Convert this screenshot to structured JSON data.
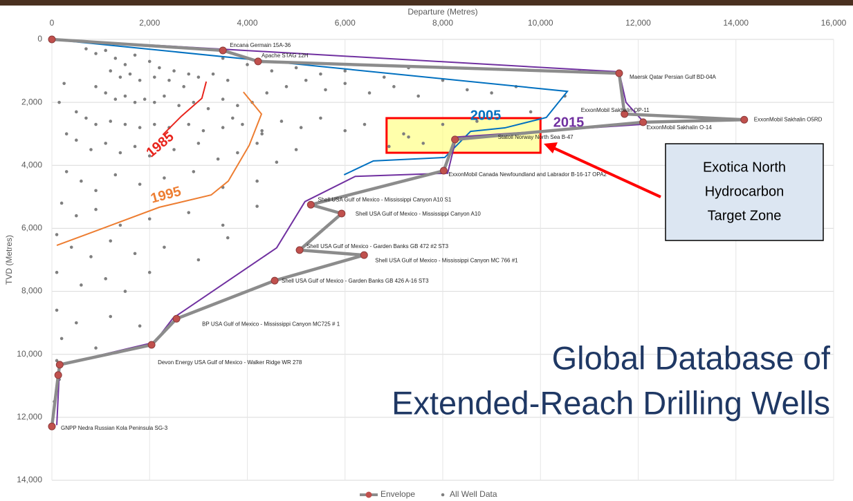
{
  "chart_data": {
    "type": "scatter",
    "title": [
      "Global Database of",
      "Extended-Reach Drilling Wells"
    ],
    "x_label": "Departure (Metres)",
    "y_label": "TVD (Metres)",
    "xlim": [
      0,
      16000
    ],
    "ylim": [
      0,
      14000
    ],
    "y_inverted": true,
    "x_axis_position": "top",
    "xticks": [
      0,
      {
        "value": 2000,
        "label": "2,000"
      },
      {
        "value": 4000,
        "label": "4,000"
      },
      {
        "value": 6000,
        "label": "6,000"
      },
      {
        "value": 8000,
        "label": "8,000"
      },
      {
        "value": 10000,
        "label": "10,000"
      },
      {
        "value": 12000,
        "label": "12,000"
      },
      {
        "value": 14000,
        "label": "14,000"
      },
      {
        "value": 16000,
        "label": "16,000"
      }
    ],
    "yticks": [
      0,
      {
        "value": 2000,
        "label": "2,000"
      },
      {
        "value": 4000,
        "label": "4,000"
      },
      {
        "value": 6000,
        "label": "6,000"
      },
      {
        "value": 8000,
        "label": "8,000"
      },
      {
        "value": 10000,
        "label": "10,000"
      },
      {
        "value": 12000,
        "label": "12,000"
      },
      {
        "value": 14000,
        "label": "14,000"
      }
    ],
    "grid": true,
    "legend": "bottom",
    "series": [
      {
        "name": "Envelope",
        "kind": "line",
        "color": "#8c8c8c",
        "marker_color": "#c0504d",
        "x": [
          0,
          3500,
          4220,
          11610,
          11720,
          14170,
          12100,
          8250,
          8020,
          5300,
          5930,
          5070,
          6390,
          4560,
          2550,
          2040,
          160,
          130,
          0
        ],
        "values": [
          0,
          350,
          700,
          1075,
          2370,
          2550,
          2630,
          3180,
          4170,
          5250,
          5530,
          6690,
          6850,
          7660,
          8870,
          9700,
          10330,
          10660,
          12290
        ],
        "point_labels": [
          null,
          "Encana Germain 15A-36",
          "Apache STAG 12H",
          "Maersk Qatar Persian Gulf BD-04A",
          "ExxonMobil Sakhalin OP-11",
          "ExxonMobil Sakhalin  O5RD",
          "ExxonMobil Sakhalin  O-14",
          "Statoil Norway North Sea B-47",
          "ExxonMobil Canada Newfoundland and Labrador B-16-17 OPA2",
          "Shell USA Gulf of Mexico - Mississippi Canyon A10 S1",
          "Shell USA Gulf of Mexico - Mississippi Canyon A10",
          "Shell USA Gulf of Mexico - Garden Banks GB 472 #2 ST3",
          "Shell USA Gulf of Mexico - Mississippi Canyon MC 766 #1",
          "Shell USA Gulf of Mexico - Garden Banks GB 426 A-16 ST3",
          "BP USA Gulf of Mexico - Mississippi Canyon MC725 # 1",
          "Devon Energy USA Gulf of Mexico - Walker Ridge WR 278",
          null,
          null,
          "GNPP Nedra Russian Kola Peninsula SG-3"
        ]
      },
      {
        "name": "All Well Data",
        "kind": "scatter",
        "color": "#7f7f7f",
        "x": [
          700,
          900,
          1100,
          1300,
          1500,
          1700,
          2000,
          2200,
          2500,
          2800,
          3000,
          3300,
          3600,
          1200,
          1400,
          1600,
          1800,
          2100,
          2400,
          2700,
          900,
          1100,
          1300,
          1500,
          1700,
          1900,
          2100,
          2300,
          2600,
          2900,
          3200,
          3500,
          3800,
          4100,
          4400,
          4800,
          5200,
          5600,
          6000,
          6500,
          7000,
          7500,
          8000,
          8500,
          9000,
          9500,
          500,
          700,
          900,
          1200,
          1500,
          1800,
          2100,
          2400,
          2800,
          3100,
          3500,
          3900,
          4300,
          4700,
          5100,
          5500,
          6000,
          6400,
          7200,
          7600,
          8000,
          500,
          800,
          1100,
          1400,
          1700,
          2000,
          2500,
          3000,
          3400,
          3800,
          4200,
          4600,
          5000,
          300,
          600,
          900,
          1300,
          1800,
          2300,
          2900,
          3500,
          4200,
          200,
          500,
          900,
          1400,
          2000,
          2800,
          3500,
          4200,
          100,
          400,
          800,
          1200,
          1700,
          2300,
          3000,
          3600,
          100,
          600,
          1100,
          1500,
          2000,
          100,
          500,
          1200,
          1800,
          200,
          900,
          100,
          150,
          50,
          3500,
          4000,
          4500,
          5000,
          5500,
          6000,
          6800,
          7300,
          10800,
          10500,
          9800,
          8700,
          7300,
          8200,
          6900,
          300,
          150,
          250,
          4300,
          3700
        ],
        "values": [
          300,
          450,
          350,
          600,
          800,
          500,
          700,
          900,
          1000,
          1100,
          1200,
          1100,
          1300,
          1000,
          1200,
          1100,
          1300,
          1200,
          1300,
          1500,
          1500,
          1700,
          1900,
          1800,
          2000,
          1900,
          2000,
          1800,
          2100,
          2000,
          2200,
          1900,
          2100,
          2000,
          1700,
          1500,
          1300,
          1600,
          1400,
          1700,
          1500,
          1800,
          1300,
          1600,
          1700,
          1500,
          2300,
          2500,
          2700,
          2600,
          2700,
          2800,
          2700,
          2800,
          2700,
          2900,
          2800,
          2700,
          2900,
          2600,
          2800,
          2500,
          2900,
          2700,
          3000,
          3300,
          2700,
          3200,
          3500,
          3300,
          3600,
          3400,
          3700,
          3500,
          3300,
          3800,
          3600,
          3300,
          3900,
          3500,
          4200,
          4500,
          4800,
          4300,
          4600,
          4400,
          4200,
          4700,
          4500,
          5200,
          5600,
          5400,
          5900,
          5700,
          5500,
          5900,
          5300,
          6200,
          6600,
          6900,
          6400,
          6800,
          6600,
          7000,
          6300,
          7400,
          7800,
          7600,
          8000,
          7400,
          8600,
          9000,
          8800,
          9100,
          9500,
          9800,
          10200,
          10800,
          11500,
          600,
          800,
          1000,
          900,
          1100,
          1000,
          1200,
          900,
          1000,
          1800,
          2300,
          2600,
          3100,
          3500,
          3400,
          3000,
          2000,
          1400,
          3000,
          2500
        ]
      }
    ],
    "trend_lines": [
      {
        "name": "1985",
        "color": "#e8241c",
        "x": [
          3160,
          3070,
          2650,
          2270
        ],
        "values": [
          1340,
          1870,
          2440,
          3030
        ]
      },
      {
        "name": "1995",
        "color": "#ed7d31",
        "x": [
          3920,
          4290,
          4040,
          3610,
          3260,
          2200,
          1060,
          100
        ],
        "values": [
          1670,
          2370,
          3360,
          4500,
          4940,
          5330,
          5990,
          6540
        ]
      },
      {
        "name": "2005",
        "color": "#0070c0",
        "x": [
          0,
          10550,
          10120,
          9270,
          8570,
          8040,
          6580,
          5980
        ],
        "values": [
          0,
          1650,
          2480,
          2810,
          2920,
          3750,
          3860,
          4300
        ]
      },
      {
        "name": "2015",
        "color": "#7030a0",
        "x": [
          0,
          11610,
          11750,
          12150,
          8280,
          8100,
          6210,
          5180,
          4600,
          2480,
          2100,
          160,
          100
        ],
        "values": [
          0,
          1030,
          2000,
          2690,
          3100,
          4250,
          4350,
          5150,
          6620,
          8850,
          9620,
          10330,
          12250
        ]
      }
    ],
    "target_zone": {
      "xlim": [
        6850,
        10000
      ],
      "ylim": [
        2500,
        3600
      ],
      "fill": "#ffff66",
      "border": "#ff0000"
    },
    "callout": [
      "Exotica North",
      "Hydrocarbon",
      "Target Zone"
    ]
  }
}
